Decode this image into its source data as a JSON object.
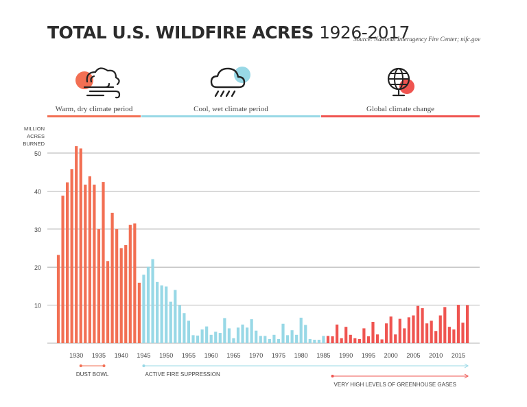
{
  "header": {
    "title_bold": "Total U.S. Wildfire Acres",
    "title_light": "1926-2017",
    "source": "Source: National Interagency Fire Center; nifc.gov"
  },
  "periods": [
    {
      "label": "Warm, dry climate period",
      "color": "#f26f53",
      "icon": "cloud-sun-wind-icon"
    },
    {
      "label": "Cool, wet climate period",
      "color": "#98d8e6",
      "icon": "cloud-rain-icon"
    },
    {
      "label": "Global climate change",
      "color": "#ef5450",
      "icon": "globe-icon"
    }
  ],
  "chart_data": {
    "type": "bar",
    "ylabel": [
      "MILLION",
      "ACRES",
      "BURNED"
    ],
    "ylim": [
      0,
      50
    ],
    "yticks": [
      10,
      20,
      30,
      40,
      50
    ],
    "grid": true,
    "x": [
      1926,
      1927,
      1928,
      1929,
      1930,
      1931,
      1932,
      1933,
      1934,
      1935,
      1936,
      1937,
      1938,
      1939,
      1940,
      1941,
      1942,
      1943,
      1944,
      1945,
      1946,
      1947,
      1948,
      1949,
      1950,
      1951,
      1952,
      1953,
      1954,
      1955,
      1956,
      1957,
      1958,
      1959,
      1960,
      1961,
      1962,
      1963,
      1964,
      1965,
      1966,
      1967,
      1968,
      1969,
      1970,
      1971,
      1972,
      1973,
      1974,
      1975,
      1976,
      1977,
      1978,
      1979,
      1980,
      1981,
      1982,
      1983,
      1984,
      1985,
      1986,
      1987,
      1988,
      1989,
      1990,
      1991,
      1992,
      1993,
      1994,
      1995,
      1996,
      1997,
      1998,
      1999,
      2000,
      2001,
      2002,
      2003,
      2004,
      2005,
      2006,
      2007,
      2008,
      2009,
      2010,
      2011,
      2012,
      2013,
      2014,
      2015,
      2016,
      2017
    ],
    "values": [
      23.2,
      38.8,
      42.3,
      45.8,
      51.8,
      51.2,
      41.7,
      43.9,
      41.7,
      30.0,
      42.4,
      21.6,
      34.3,
      30.0,
      25.0,
      25.8,
      31.1,
      31.5,
      15.9,
      18.0,
      20.1,
      22.1,
      16.1,
      15.2,
      14.9,
      10.9,
      14.0,
      10.0,
      7.9,
      5.9,
      2.1,
      2.0,
      3.6,
      4.4,
      2.2,
      3.0,
      2.7,
      6.6,
      3.9,
      1.3,
      4.1,
      4.9,
      4.1,
      6.3,
      3.3,
      1.9,
      1.9,
      1.1,
      2.2,
      1.1,
      5.1,
      2.1,
      3.4,
      2.2,
      6.7,
      4.8,
      1.1,
      0.9,
      0.9,
      1.9,
      1.9,
      1.8,
      4.9,
      1.3,
      4.3,
      2.2,
      1.3,
      1.1,
      3.9,
      1.8,
      5.6,
      2.3,
      1.0,
      5.2,
      7.0,
      2.3,
      6.4,
      3.9,
      6.8,
      7.3,
      9.8,
      9.2,
      5.2,
      5.9,
      3.2,
      7.3,
      9.5,
      4.3,
      3.6,
      10.1,
      5.4,
      10.0
    ],
    "xticks": [
      1930,
      1935,
      1940,
      1945,
      1950,
      1955,
      1960,
      1965,
      1970,
      1975,
      1980,
      1985,
      1990,
      1995,
      2000,
      2005,
      2010,
      2015
    ],
    "colors": {
      "warm": "#f26f53",
      "cool": "#98d8e6",
      "change": "#ef5450"
    },
    "annotations": [
      {
        "label": "DUST BOWL",
        "start": 1931,
        "end": 1936,
        "color": "#f26f53"
      },
      {
        "label": "ACTIVE FIRE SUPPRESSION",
        "start": 1945,
        "end": 2017,
        "color": "#98d8e6"
      },
      {
        "label": "VERY HIGH LEVELS OF GREENHOUSE GASES",
        "start": 1987,
        "end": 2017,
        "color": "#ef5450"
      }
    ]
  }
}
